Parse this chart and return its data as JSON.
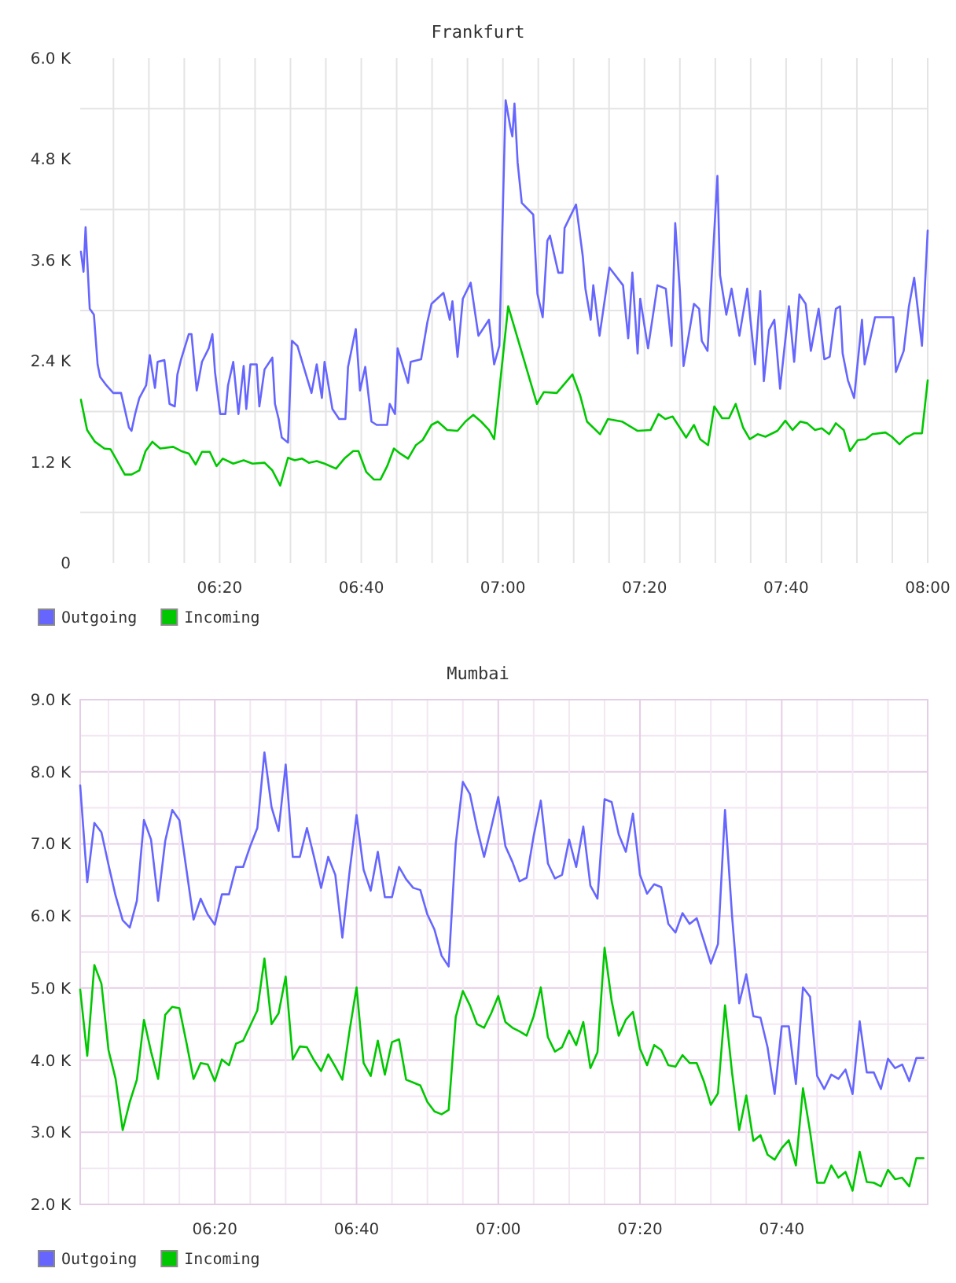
{
  "chart_data": [
    {
      "type": "line",
      "title": "Frankfurt",
      "xlim": [
        6.005,
        8.0
      ],
      "xticks": [
        {
          "value": 6.0833,
          "label": null
        },
        {
          "value": 6.1667,
          "label": null
        },
        {
          "value": 6.25,
          "label": null
        },
        {
          "value": 6.3333,
          "label": "06:20"
        },
        {
          "value": 6.4167,
          "label": null
        },
        {
          "value": 6.5,
          "label": null
        },
        {
          "value": 6.5833,
          "label": null
        },
        {
          "value": 6.6667,
          "label": "06:40"
        },
        {
          "value": 6.75,
          "label": null
        },
        {
          "value": 6.8333,
          "label": null
        },
        {
          "value": 6.9167,
          "label": null
        },
        {
          "value": 7,
          "label": "07:00"
        },
        {
          "value": 7.0833,
          "label": null
        },
        {
          "value": 7.1667,
          "label": null
        },
        {
          "value": 7.25,
          "label": null
        },
        {
          "value": 7.3333,
          "label": "07:20"
        },
        {
          "value": 7.4167,
          "label": null
        },
        {
          "value": 7.5,
          "label": null
        },
        {
          "value": 7.5833,
          "label": null
        },
        {
          "value": 7.6667,
          "label": "07:40"
        },
        {
          "value": 7.75,
          "label": null
        },
        {
          "value": 7.8333,
          "label": null
        },
        {
          "value": 7.9167,
          "label": null
        },
        {
          "value": 8.0,
          "label": "08:00"
        }
      ],
      "ylim": [
        0,
        6000
      ],
      "yticks": [
        0,
        {
          "value": 600,
          "label": null
        },
        {
          "value": 1200,
          "label": "1.2 K"
        },
        {
          "value": 1800,
          "label": null
        },
        {
          "value": 2400,
          "label": "2.4 K"
        },
        {
          "value": 3000,
          "label": null
        },
        {
          "value": 3600,
          "label": "3.6 K"
        },
        {
          "value": 4200,
          "label": null
        },
        {
          "value": 4800,
          "label": "4.8 K"
        },
        {
          "value": 5400,
          "label": null
        },
        {
          "value": 6000,
          "label": "6.0 K"
        }
      ],
      "grid": true,
      "legend": "bottom left",
      "series": [
        {
          "name": "Outgoing",
          "color": "#6666ff",
          "x": [
            6.0067,
            6.0128,
            6.0177,
            6.0275,
            6.0373,
            6.046,
            6.052,
            6.0668,
            6.0828,
            6.1012,
            6.1197,
            6.1258,
            6.1343,
            6.1442,
            6.1602,
            6.1688,
            6.181,
            6.1872,
            6.2032,
            6.2153,
            6.2277,
            6.2338,
            6.2425,
            6.2608,
            6.267,
            6.2793,
            6.2917,
            6.3075,
            6.3162,
            6.3223,
            6.3345,
            6.3468,
            6.353,
            6.3653,
            6.3775,
            6.3898,
            6.396,
            6.4058,
            6.4205,
            6.4267,
            6.439,
            6.4573,
            6.4635,
            6.4722,
            6.4795,
            6.4942,
            6.5035,
            6.5163,
            6.5495,
            6.5618,
            6.574,
            6.5802,
            6.5987,
            6.6145,
            6.6293,
            6.6355,
            6.6538,
            6.6637,
            6.676,
            6.6907,
            6.703,
            6.7277,
            6.7337,
            6.746,
            6.7522,
            6.7768,
            6.783,
            6.8075,
            6.8222,
            6.832,
            6.8602,
            6.875,
            6.8812,
            6.8933,
            6.9057,
            6.9242,
            6.9425,
            6.9672,
            6.9795,
            6.9917,
            7.0065,
            7.0175,
            7.0223,
            7.0273,
            7.0347,
            7.0445,
            7.0715,
            7.0813,
            7.0937,
            7.1047,
            7.1108,
            7.1305,
            7.1403,
            7.1452,
            7.1722,
            7.1882,
            7.1943,
            7.2067,
            7.2128,
            7.2275,
            7.2508,
            7.2828,
            7.295,
            7.3048,
            7.3172,
            7.3233,
            7.3417,
            7.3638,
            7.3835,
            7.397,
            7.4057,
            7.4167,
            7.4253,
            7.4498,
            7.462,
            7.4682,
            7.4817,
            7.505,
            7.5112,
            7.526,
            7.5383,
            7.5567,
            7.5752,
            7.5935,
            7.6058,
            7.6143,
            7.6267,
            7.639,
            7.6525,
            7.6733,
            7.6857,
            7.698,
            7.7127,
            7.725,
            7.7433,
            7.7568,
            7.7692,
            7.7838,
            7.7937,
            7.7998,
            7.8122,
            7.8268,
            7.8453,
            7.8515,
            7.876,
            7.9005,
            7.919,
            7.9252,
            7.9435,
            7.9558,
            7.9682,
            7.9865,
            8.0
          ],
          "values": [
            3700,
            3460,
            3990,
            3020,
            2950,
            2360,
            2210,
            2110,
            2020,
            2020,
            1610,
            1570,
            1770,
            1960,
            2110,
            2470,
            2080,
            2390,
            2410,
            1890,
            1860,
            2240,
            2420,
            2720,
            2720,
            2050,
            2390,
            2550,
            2720,
            2270,
            1770,
            1770,
            2110,
            2390,
            1770,
            2340,
            1830,
            2360,
            2360,
            1860,
            2300,
            2440,
            1890,
            1710,
            1490,
            1430,
            2640,
            2580,
            2020,
            2360,
            1960,
            2390,
            1830,
            1710,
            1710,
            2330,
            2780,
            2050,
            2330,
            1680,
            1640,
            1640,
            1890,
            1770,
            2550,
            2140,
            2390,
            2420,
            2860,
            3080,
            3210,
            2890,
            3110,
            2450,
            3140,
            3330,
            2700,
            2890,
            2360,
            2580,
            5500,
            5180,
            5070,
            5460,
            4760,
            4280,
            4140,
            3200,
            2920,
            3830,
            3890,
            3450,
            3450,
            3980,
            4260,
            3640,
            3260,
            2890,
            3300,
            2700,
            3510,
            3300,
            2670,
            3450,
            2490,
            3140,
            2550,
            3300,
            3260,
            2580,
            4040,
            3230,
            2340,
            3080,
            3020,
            2640,
            2520,
            4600,
            3420,
            2950,
            3260,
            2700,
            3260,
            2360,
            3230,
            2160,
            2770,
            2890,
            2070,
            3050,
            2390,
            3190,
            3080,
            2520,
            3020,
            2420,
            2450,
            3020,
            3050,
            2490,
            2170,
            1960,
            2890,
            2360,
            2920,
            2920,
            2920,
            2270,
            2520,
            3050,
            3390,
            2580,
            3950
          ]
        },
        {
          "name": "Incoming",
          "color": "#00c800",
          "x": [
            6.0067,
            6.0213,
            6.0398,
            6.0618,
            6.0767,
            6.089,
            6.11,
            6.1258,
            6.1442,
            6.159,
            6.1748,
            6.1933,
            6.224,
            6.2425,
            6.2608,
            6.2768,
            6.2917,
            6.31,
            6.326,
            6.3407,
            6.3653,
            6.3898,
            6.4107,
            6.439,
            6.4573,
            6.4758,
            6.4942,
            6.5102,
            6.5273,
            6.5433,
            6.5618,
            6.5802,
            6.6072,
            6.6268,
            6.6477,
            6.66,
            6.6785,
            6.6968,
            6.7117,
            6.7277,
            6.7435,
            6.7583,
            6.7768,
            6.7953,
            6.8112,
            6.832,
            6.8468,
            6.869,
            6.8933,
            6.9118,
            6.9303,
            6.9487,
            6.9672,
            6.9795,
            7.0125,
            7.0802,
            7.0962,
            7.1268,
            7.1637,
            7.182,
            7.198,
            7.2287,
            7.2472,
            7.2803,
            7.3172,
            7.3478,
            7.3663,
            7.3823,
            7.3995,
            7.4313,
            7.4498,
            7.4645,
            7.483,
            7.4977,
            7.5162,
            7.5322,
            7.548,
            7.5653,
            7.5812,
            7.5997,
            7.618,
            7.6463,
            7.6648,
            7.682,
            7.7003,
            7.7163,
            7.7347,
            7.7507,
            7.768,
            7.7838,
            7.8023,
            7.817,
            7.8355,
            7.8538,
            7.8698,
            7.9005,
            7.9153,
            7.9337,
            7.9497,
            7.9682,
            7.9865,
            8.0
          ],
          "values": [
            1940,
            1580,
            1440,
            1360,
            1350,
            1240,
            1050,
            1050,
            1100,
            1330,
            1440,
            1360,
            1380,
            1330,
            1300,
            1170,
            1320,
            1320,
            1150,
            1240,
            1180,
            1220,
            1180,
            1190,
            1100,
            920,
            1250,
            1220,
            1240,
            1190,
            1210,
            1180,
            1120,
            1240,
            1330,
            1330,
            1080,
            990,
            990,
            1150,
            1360,
            1300,
            1240,
            1400,
            1460,
            1640,
            1680,
            1580,
            1570,
            1680,
            1760,
            1680,
            1580,
            1470,
            3050,
            1890,
            2030,
            2020,
            2240,
            1990,
            1680,
            1530,
            1710,
            1680,
            1570,
            1580,
            1770,
            1710,
            1740,
            1490,
            1640,
            1470,
            1400,
            1860,
            1720,
            1720,
            1890,
            1610,
            1470,
            1530,
            1500,
            1570,
            1690,
            1580,
            1680,
            1660,
            1580,
            1600,
            1530,
            1660,
            1580,
            1330,
            1460,
            1470,
            1530,
            1550,
            1500,
            1410,
            1490,
            1540,
            1540,
            2170
          ]
        }
      ]
    },
    {
      "type": "line",
      "title": "Mumbai",
      "xlim": [
        6.0167,
        8.01
      ],
      "xticks": [
        {
          "value": 6.0833,
          "label": null
        },
        {
          "value": 6.1667,
          "label": null
        },
        {
          "value": 6.25,
          "label": null
        },
        {
          "value": 6.3333,
          "label": "06:20"
        },
        {
          "value": 6.4167,
          "label": null
        },
        {
          "value": 6.5,
          "label": null
        },
        {
          "value": 6.5833,
          "label": null
        },
        {
          "value": 6.6667,
          "label": "06:40"
        },
        {
          "value": 6.75,
          "label": null
        },
        {
          "value": 6.8333,
          "label": null
        },
        {
          "value": 6.9167,
          "label": null
        },
        {
          "value": 7,
          "label": "07:00"
        },
        {
          "value": 7.0833,
          "label": null
        },
        {
          "value": 7.1667,
          "label": null
        },
        {
          "value": 7.25,
          "label": null
        },
        {
          "value": 7.3333,
          "label": "07:20"
        },
        {
          "value": 7.4167,
          "label": null
        },
        {
          "value": 7.5,
          "label": null
        },
        {
          "value": 7.5833,
          "label": null
        },
        {
          "value": 7.6667,
          "label": "07:40"
        },
        {
          "value": 7.75,
          "label": null
        },
        {
          "value": 7.8333,
          "label": null
        },
        {
          "value": 7.9167,
          "label": null
        }
      ],
      "ylim": [
        2000,
        9000
      ],
      "yticks": [
        {
          "value": 2000,
          "label": "2.0 K"
        },
        {
          "value": 2500,
          "label": null
        },
        {
          "value": 3000,
          "label": "3.0 K"
        },
        {
          "value": 3500,
          "label": null
        },
        {
          "value": 4000,
          "label": "4.0 K"
        },
        {
          "value": 4500,
          "label": null
        },
        {
          "value": 5000,
          "label": "5.0 K"
        },
        {
          "value": 5500,
          "label": null
        },
        {
          "value": 6000,
          "label": "6.0 K"
        },
        {
          "value": 6500,
          "label": null
        },
        {
          "value": 7000,
          "label": "7.0 K"
        },
        {
          "value": 7500,
          "label": null
        },
        {
          "value": 8000,
          "label": "8.0 K"
        },
        {
          "value": 8500,
          "label": null
        },
        {
          "value": 9000,
          "label": "9.0 K"
        }
      ],
      "grid": true,
      "legend": "bottom left",
      "x": [
        6.0167,
        6.0333,
        6.05,
        6.0667,
        6.0833,
        6.1,
        6.1167,
        6.1333,
        6.15,
        6.1667,
        6.1833,
        6.2,
        6.2167,
        6.2333,
        6.25,
        6.2667,
        6.2833,
        6.3,
        6.3167,
        6.3333,
        6.35,
        6.3667,
        6.3833,
        6.4,
        6.4167,
        6.4333,
        6.45,
        6.4667,
        6.4833,
        6.5,
        6.5167,
        6.5333,
        6.55,
        6.5667,
        6.5833,
        6.6,
        6.6167,
        6.6333,
        6.65,
        6.6667,
        6.6833,
        6.7,
        6.7167,
        6.7333,
        6.75,
        6.7667,
        6.7833,
        6.8,
        6.8167,
        6.8333,
        6.85,
        6.8667,
        6.8833,
        6.9,
        6.9167,
        6.9333,
        6.95,
        6.9667,
        6.9833,
        7,
        7.0167,
        7.0333,
        7.05,
        7.0667,
        7.0833,
        7.1,
        7.1167,
        7.1333,
        7.15,
        7.1667,
        7.1833,
        7.2,
        7.2167,
        7.2333,
        7.25,
        7.2667,
        7.2833,
        7.3,
        7.3167,
        7.3333,
        7.35,
        7.3667,
        7.3833,
        7.4,
        7.4167,
        7.4333,
        7.45,
        7.4667,
        7.4833,
        7.5,
        7.5167,
        7.5333,
        7.55,
        7.5667,
        7.5833,
        7.6,
        7.6167,
        7.6333,
        7.65,
        7.6667,
        7.6833,
        7.7,
        7.7167,
        7.7333,
        7.75,
        7.7667,
        7.7833,
        7.8,
        7.8167,
        7.8333,
        7.85,
        7.8667,
        7.8833,
        7.9,
        7.9167,
        7.9333,
        7.95,
        7.9667,
        7.9833,
        8.0
      ],
      "series": [
        {
          "name": "Outgoing",
          "color": "#6666ff",
          "values": [
            7810,
            6470,
            7290,
            7160,
            6710,
            6280,
            5940,
            5840,
            6210,
            7330,
            7060,
            6210,
            7040,
            7470,
            7330,
            6640,
            5950,
            6240,
            6020,
            5880,
            6300,
            6300,
            6680,
            6680,
            6970,
            7220,
            8270,
            7510,
            7180,
            8100,
            6820,
            6820,
            7220,
            6820,
            6390,
            6820,
            6570,
            5700,
            6600,
            7400,
            6640,
            6350,
            6890,
            6260,
            6260,
            6680,
            6510,
            6390,
            6360,
            6020,
            5810,
            5450,
            5300,
            7000,
            7860,
            7690,
            7220,
            6820,
            7220,
            7650,
            6970,
            6750,
            6480,
            6530,
            7110,
            7600,
            6730,
            6520,
            6570,
            7060,
            6680,
            7240,
            6420,
            6240,
            7620,
            7580,
            7130,
            6890,
            7420,
            6570,
            6310,
            6440,
            6400,
            5890,
            5770,
            6040,
            5890,
            5970,
            5660,
            5340,
            5610,
            7470,
            5990,
            4790,
            5190,
            4610,
            4590,
            4180,
            3530,
            4470,
            4470,
            3670,
            5010,
            4880,
            3780,
            3600,
            3800,
            3740,
            3870,
            3530,
            4540,
            3830,
            3830,
            3600,
            4020,
            3890,
            3940,
            3710,
            4030,
            4030
          ]
        },
        {
          "name": "Incoming",
          "color": "#00c800",
          "values": [
            4980,
            4060,
            5320,
            5060,
            4140,
            3740,
            3030,
            3420,
            3730,
            4560,
            4120,
            3740,
            4630,
            4740,
            4720,
            4240,
            3740,
            3960,
            3940,
            3710,
            4010,
            3930,
            4230,
            4270,
            4480,
            4690,
            5410,
            4500,
            4650,
            5160,
            4010,
            4190,
            4180,
            4000,
            3850,
            4080,
            3910,
            3730,
            4400,
            5010,
            3960,
            3780,
            4270,
            3800,
            4250,
            4290,
            3730,
            3690,
            3650,
            3420,
            3290,
            3250,
            3310,
            4600,
            4960,
            4760,
            4500,
            4450,
            4650,
            4890,
            4530,
            4450,
            4400,
            4340,
            4610,
            5010,
            4320,
            4120,
            4180,
            4410,
            4210,
            4530,
            3890,
            4110,
            5560,
            4820,
            4340,
            4560,
            4670,
            4160,
            3930,
            4210,
            4140,
            3930,
            3910,
            4070,
            3960,
            3960,
            3710,
            3380,
            3540,
            4760,
            3820,
            3030,
            3510,
            2880,
            2960,
            2690,
            2620,
            2780,
            2890,
            2540,
            3610,
            3010,
            2300,
            2300,
            2540,
            2370,
            2450,
            2190,
            2730,
            2310,
            2300,
            2250,
            2480,
            2350,
            2370,
            2250,
            2640,
            2640
          ]
        }
      ]
    }
  ]
}
